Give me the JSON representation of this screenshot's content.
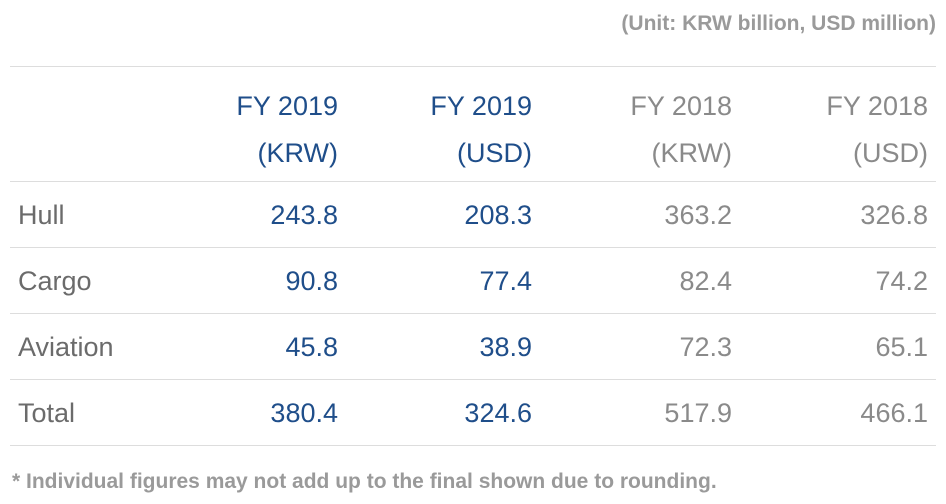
{
  "unit_note": "(Unit: KRW billion, USD million)",
  "columns": [
    {
      "line1": "FY 2019",
      "line2": "(KRW)"
    },
    {
      "line1": "FY 2019",
      "line2": "(USD)"
    },
    {
      "line1": "FY 2018",
      "line2": "(KRW)"
    },
    {
      "line1": "FY 2018",
      "line2": "(USD)"
    }
  ],
  "rows": [
    {
      "label": "Hull",
      "values": [
        "243.8",
        "208.3",
        "363.2",
        "326.8"
      ]
    },
    {
      "label": "Cargo",
      "values": [
        "90.8",
        "77.4",
        "82.4",
        "74.2"
      ]
    },
    {
      "label": "Aviation",
      "values": [
        "45.8",
        "38.9",
        "72.3",
        "65.1"
      ]
    },
    {
      "label": "Total",
      "values": [
        "380.4",
        "324.6",
        "517.9",
        "466.1"
      ]
    }
  ],
  "footnote": "* Individual figures may not add up to the final shown due to rounding.",
  "colors": {
    "fy2019": "#1f4e8a",
    "fy2018": "#8a8a8a",
    "label": "#6b6b6b",
    "note": "#9a9a9a"
  }
}
